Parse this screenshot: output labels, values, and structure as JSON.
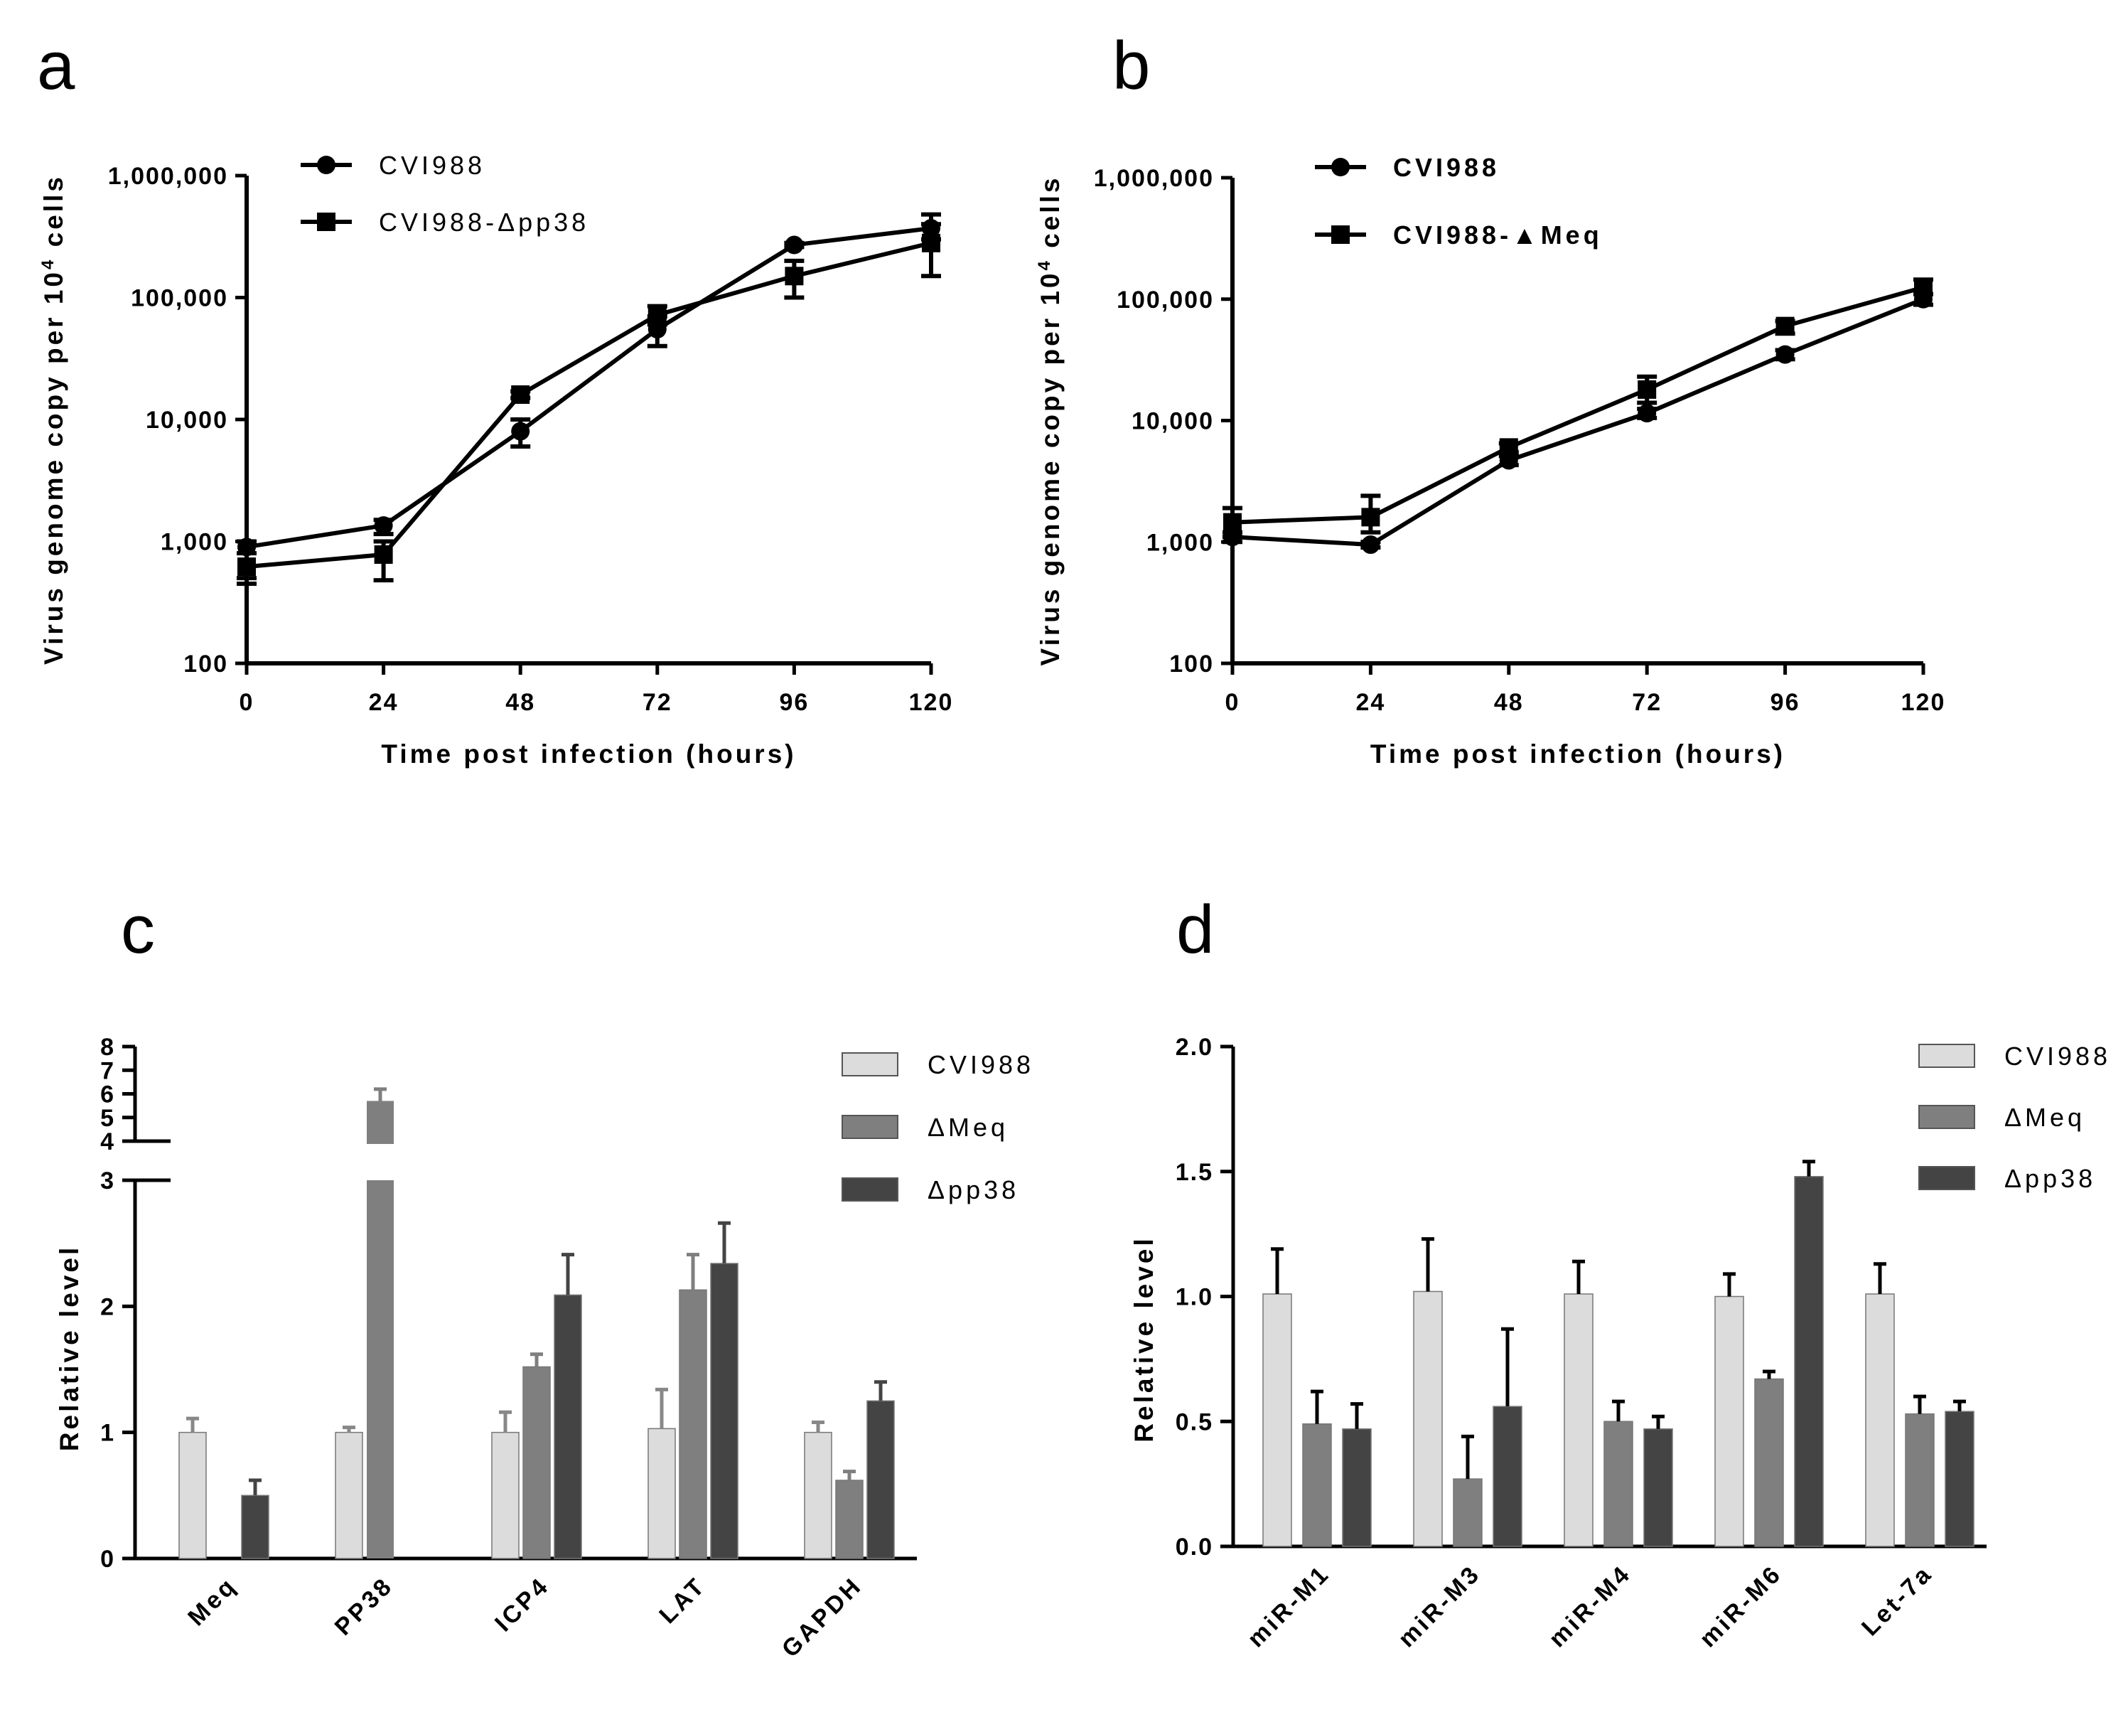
{
  "chart_data": [
    {
      "panel": "a",
      "type": "line",
      "yscale": "log",
      "xlabel": "Time post infection (hours)",
      "ylabel_main": "Virus genome copy per 10",
      "ylabel_sup": "4",
      "ylabel_tail": " cells",
      "xticks": [
        0,
        24,
        48,
        72,
        96,
        120
      ],
      "xtick_labels": [
        "0",
        "24",
        "48",
        "72",
        "96",
        "120"
      ],
      "yticks": [
        100,
        1000,
        10000,
        100000,
        1000000
      ],
      "ytick_labels": [
        "100",
        "1,000",
        "10,000",
        "100,000",
        "1,000,000"
      ],
      "xlim": [
        0,
        120
      ],
      "ylim": [
        100,
        1000000
      ],
      "x": [
        0,
        24,
        48,
        72,
        96,
        120
      ],
      "series": [
        {
          "name": "CVI988",
          "marker": "circle",
          "values": [
            900,
            1350,
            8000,
            55000,
            270000,
            370000
          ],
          "err_lo": [
            500,
            1150,
            6000,
            40000,
            260000,
            300000
          ],
          "err_hi": [
            1000,
            1500,
            10000,
            70000,
            280000,
            480000
          ]
        },
        {
          "name": "CVI988-Δpp38",
          "marker": "square",
          "values": [
            620,
            780,
            16000,
            72000,
            150000,
            280000
          ],
          "err_lo": [
            450,
            480,
            15000,
            60000,
            100000,
            150000
          ],
          "err_hi": [
            800,
            1000,
            17000,
            85000,
            200000,
            400000
          ]
        }
      ],
      "legend_position": "top-left",
      "legend_labels": [
        "CVI988",
        "CVI988-Δpp38"
      ]
    },
    {
      "panel": "b",
      "type": "line",
      "yscale": "log",
      "xlabel": "Time post infection (hours)",
      "ylabel_main": "Virus genome copy per 10",
      "ylabel_sup": "4",
      "ylabel_tail": " cells",
      "xticks": [
        0,
        24,
        48,
        72,
        96,
        120
      ],
      "xtick_labels": [
        "0",
        "24",
        "48",
        "72",
        "96",
        "120"
      ],
      "yticks": [
        100,
        1000,
        10000,
        100000,
        1000000
      ],
      "ytick_labels": [
        "100",
        "1,000",
        "10,000",
        "100,000",
        "1,000,000"
      ],
      "xlim": [
        0,
        120
      ],
      "ylim": [
        100,
        1000000
      ],
      "x": [
        0,
        24,
        48,
        72,
        96,
        120
      ],
      "series": [
        {
          "name": "CVI988",
          "marker": "circle",
          "values": [
            1100,
            950,
            4700,
            11500,
            35000,
            100000
          ],
          "err_lo": [
            1000,
            900,
            4300,
            10500,
            32000,
            90000
          ],
          "err_hi": [
            1200,
            1000,
            5100,
            12500,
            38000,
            110000
          ]
        },
        {
          "name": "CVI988-▲Meq",
          "marker": "square",
          "values": [
            1450,
            1600,
            6000,
            18000,
            60000,
            125000
          ],
          "err_lo": [
            1100,
            1200,
            5500,
            14000,
            52000,
            110000
          ],
          "err_hi": [
            1900,
            2400,
            6500,
            23000,
            66000,
            145000
          ]
        }
      ],
      "legend_position": "top-left",
      "legend_labels": [
        "CVI988",
        "CVI988-▲Meq"
      ]
    },
    {
      "panel": "c",
      "type": "bar",
      "broken_axis": true,
      "ylabel": "Relative level",
      "categories": [
        "Meq",
        "PP38",
        "ICP4",
        "LAT",
        "GAPDH"
      ],
      "lower_yticks": [
        "0",
        "1",
        "2",
        "3"
      ],
      "upper_yticks": [
        "4",
        "5",
        "6",
        "7",
        "8"
      ],
      "lower_ylim": [
        0,
        3
      ],
      "upper_ylim": [
        4,
        8
      ],
      "series": [
        {
          "name": "CVI988",
          "color": "#dcdcdc",
          "values": [
            1.0,
            1.0,
            1.0,
            1.03,
            1.0
          ],
          "errors": [
            0.11,
            0.04,
            0.16,
            0.31,
            0.08
          ]
        },
        {
          "name": "ΔMeq",
          "color": "#7f7f7f",
          "values": [
            null,
            5.7,
            1.52,
            2.13,
            0.62
          ],
          "errors": [
            null,
            0.5,
            0.1,
            0.28,
            0.07
          ]
        },
        {
          "name": "Δpp38",
          "color": "#444444",
          "values": [
            0.5,
            null,
            2.09,
            2.34,
            1.25
          ],
          "errors": [
            0.12,
            null,
            0.32,
            0.32,
            0.15
          ]
        }
      ],
      "legend_position": "top-right",
      "legend_labels": [
        "CVI988",
        "ΔMeq",
        "Δpp38"
      ]
    },
    {
      "panel": "d",
      "type": "bar",
      "ylabel": "Relative level",
      "categories": [
        "miR-M1",
        "miR-M3",
        "miR-M4",
        "miR-M6",
        "Let-7a"
      ],
      "yticks": [
        "0.0",
        "0.5",
        "1.0",
        "1.5",
        "2.0"
      ],
      "ylim": [
        0,
        2
      ],
      "series": [
        {
          "name": "CVI988",
          "color": "#dcdcdc",
          "values": [
            1.01,
            1.02,
            1.01,
            1.0,
            1.01
          ],
          "errors": [
            0.18,
            0.21,
            0.13,
            0.09,
            0.12
          ]
        },
        {
          "name": "ΔMeq",
          "color": "#7f7f7f",
          "values": [
            0.49,
            0.27,
            0.5,
            0.67,
            0.53
          ],
          "errors": [
            0.13,
            0.17,
            0.08,
            0.03,
            0.07
          ]
        },
        {
          "name": "Δpp38",
          "color": "#444444",
          "values": [
            0.47,
            0.56,
            0.47,
            1.48,
            0.54
          ],
          "errors": [
            0.1,
            0.31,
            0.05,
            0.06,
            0.04
          ]
        }
      ],
      "legend_position": "top-right",
      "legend_labels": [
        "CVI988",
        "ΔMeq",
        "Δpp38"
      ]
    }
  ],
  "panels": {
    "a": "a",
    "b": "b",
    "c": "c",
    "d": "d"
  }
}
